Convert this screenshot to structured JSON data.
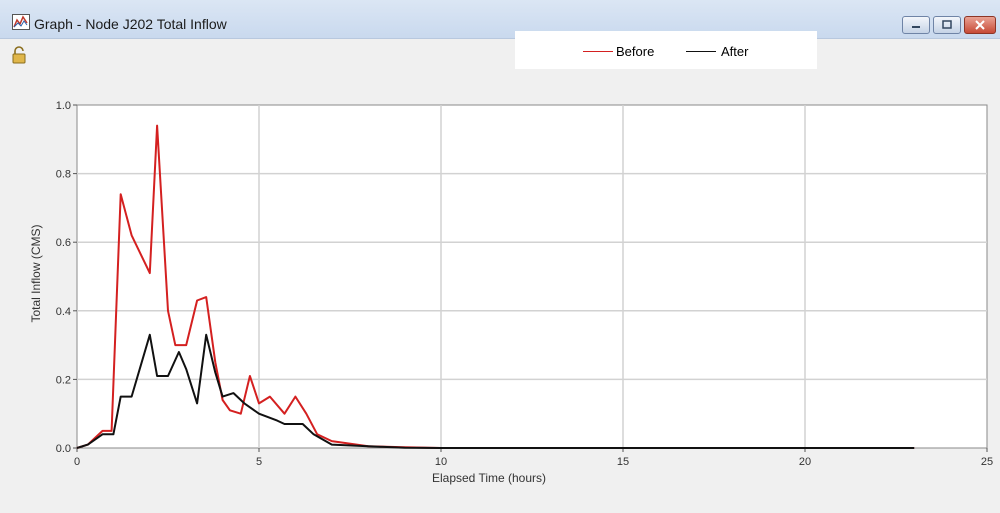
{
  "window": {
    "title": "Graph - Node J202 Total Inflow",
    "controls": [
      "minimize",
      "maximize",
      "close"
    ],
    "icons": [
      "graph-icon",
      "lock-icon"
    ]
  },
  "colors": {
    "before": "#d42020",
    "after": "#111111",
    "grid": "#d2d2d2",
    "plot_bg": "#ffffff"
  },
  "legend": {
    "items": [
      {
        "label": "Before",
        "color": "#d42020"
      },
      {
        "label": "After",
        "color": "#111111"
      }
    ]
  },
  "chart_data": {
    "type": "line",
    "title": "",
    "xlabel": "Elapsed Time (hours)",
    "ylabel": "Total Inflow (CMS)",
    "xlim": [
      0,
      25
    ],
    "ylim": [
      0,
      1.0
    ],
    "x_ticks": [
      0,
      5,
      10,
      15,
      20,
      25
    ],
    "y_ticks": [
      "0.0",
      "0.2",
      "0.4",
      "0.6",
      "0.8",
      "1.0"
    ],
    "grid": true,
    "legend_position": "top",
    "series": [
      {
        "name": "Before",
        "color": "#d42020",
        "points": [
          [
            0,
            0
          ],
          [
            0.3,
            0.01
          ],
          [
            0.7,
            0.05
          ],
          [
            0.95,
            0.05
          ],
          [
            1.2,
            0.74
          ],
          [
            1.5,
            0.62
          ],
          [
            2.0,
            0.51
          ],
          [
            2.2,
            0.94
          ],
          [
            2.5,
            0.4
          ],
          [
            2.7,
            0.3
          ],
          [
            3.0,
            0.3
          ],
          [
            3.3,
            0.43
          ],
          [
            3.55,
            0.44
          ],
          [
            3.8,
            0.25
          ],
          [
            4.0,
            0.14
          ],
          [
            4.2,
            0.11
          ],
          [
            4.5,
            0.1
          ],
          [
            4.75,
            0.21
          ],
          [
            5.0,
            0.13
          ],
          [
            5.3,
            0.15
          ],
          [
            5.7,
            0.1
          ],
          [
            6.0,
            0.15
          ],
          [
            6.3,
            0.1
          ],
          [
            6.6,
            0.04
          ],
          [
            7.0,
            0.02
          ],
          [
            8.0,
            0.005
          ],
          [
            9.0,
            0.002
          ],
          [
            10,
            0
          ],
          [
            15,
            0
          ],
          [
            20,
            0
          ],
          [
            23,
            0
          ]
        ]
      },
      {
        "name": "After",
        "color": "#111111",
        "points": [
          [
            0,
            0
          ],
          [
            0.3,
            0.01
          ],
          [
            0.7,
            0.04
          ],
          [
            1.0,
            0.04
          ],
          [
            1.2,
            0.15
          ],
          [
            1.5,
            0.15
          ],
          [
            2.0,
            0.33
          ],
          [
            2.2,
            0.21
          ],
          [
            2.5,
            0.21
          ],
          [
            2.8,
            0.28
          ],
          [
            3.0,
            0.23
          ],
          [
            3.3,
            0.13
          ],
          [
            3.55,
            0.33
          ],
          [
            3.8,
            0.22
          ],
          [
            4.0,
            0.15
          ],
          [
            4.3,
            0.16
          ],
          [
            4.6,
            0.13
          ],
          [
            5.0,
            0.1
          ],
          [
            5.5,
            0.08
          ],
          [
            5.7,
            0.07
          ],
          [
            6.2,
            0.07
          ],
          [
            6.5,
            0.04
          ],
          [
            7.0,
            0.01
          ],
          [
            8.0,
            0.005
          ],
          [
            9.0,
            0.001
          ],
          [
            10,
            0
          ],
          [
            15,
            0
          ],
          [
            20,
            0
          ],
          [
            23,
            0
          ]
        ]
      }
    ]
  }
}
